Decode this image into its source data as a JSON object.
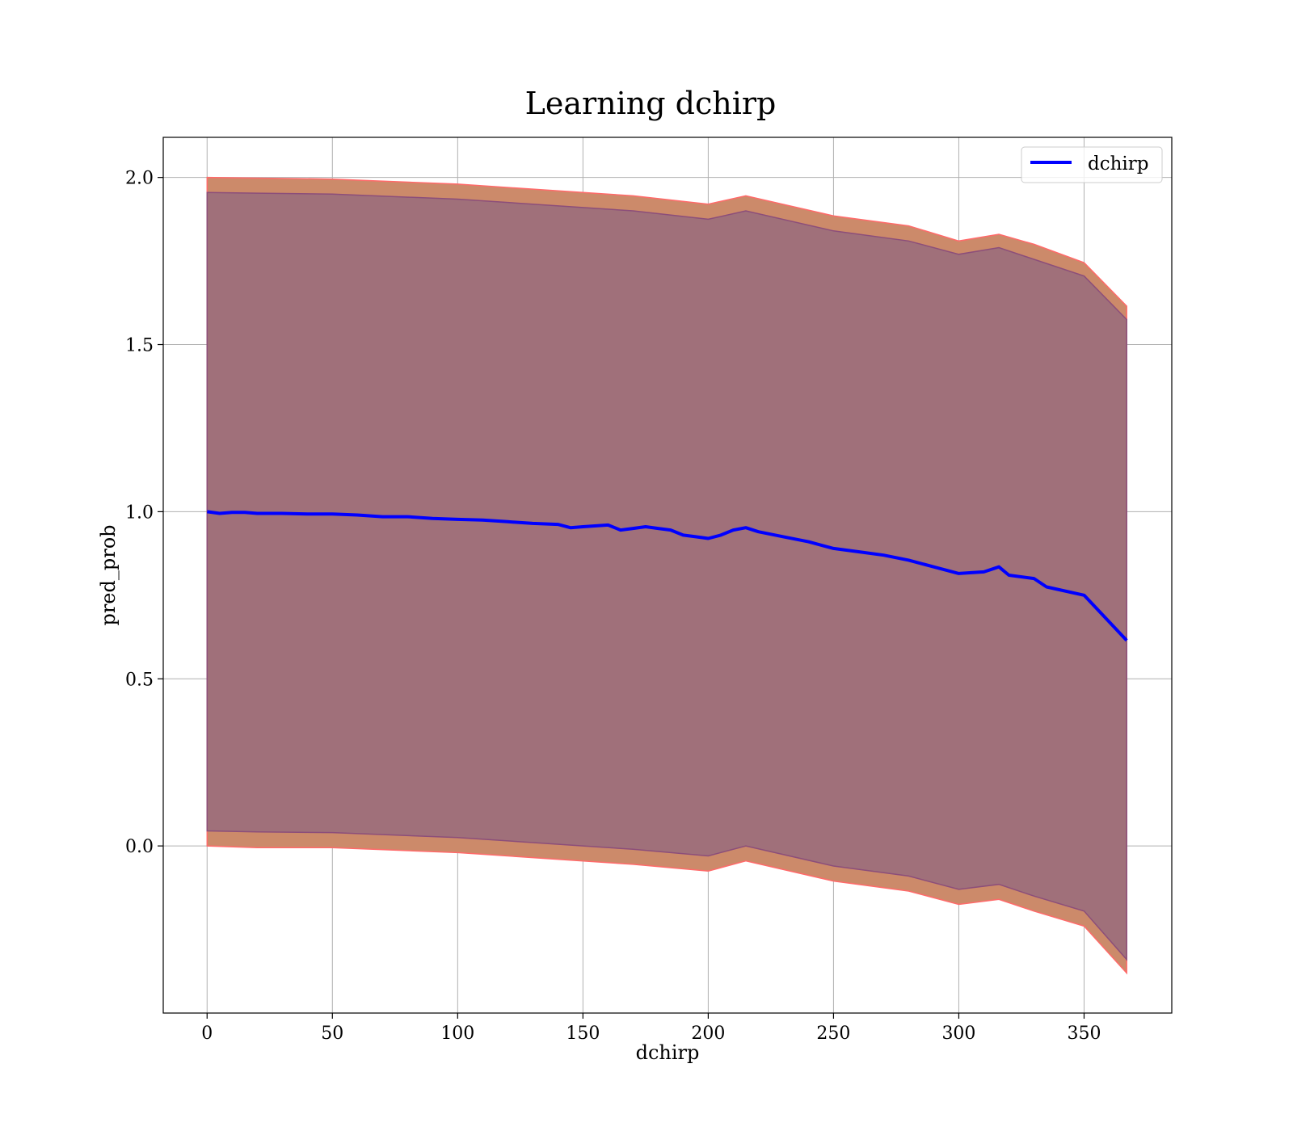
{
  "chart_data": {
    "type": "line",
    "title": "Learning dchirp",
    "xlabel": "dchirp",
    "ylabel": "pred_prob",
    "xlim": [
      -17.5,
      385
    ],
    "ylim": [
      -0.5,
      2.12
    ],
    "xticks": [
      0,
      50,
      100,
      150,
      200,
      250,
      300,
      350
    ],
    "yticks": [
      0.0,
      0.5,
      1.0,
      1.5,
      2.0
    ],
    "xtick_labels": [
      "0",
      "50",
      "100",
      "150",
      "200",
      "250",
      "300",
      "350"
    ],
    "ytick_labels": [
      "0.0",
      "0.5",
      "1.0",
      "1.5",
      "2.0"
    ],
    "grid": true,
    "legend_position": "top-right",
    "series": [
      {
        "name": "dchirp",
        "color": "#0000ff",
        "x": [
          0,
          5,
          10,
          15,
          20,
          30,
          40,
          50,
          60,
          70,
          80,
          90,
          100,
          110,
          120,
          130,
          140,
          145,
          150,
          160,
          165,
          170,
          175,
          180,
          185,
          190,
          195,
          200,
          205,
          210,
          215,
          220,
          230,
          240,
          250,
          260,
          270,
          280,
          290,
          300,
          310,
          316,
          320,
          330,
          335,
          350,
          367
        ],
        "y": [
          1.0,
          0.995,
          0.998,
          0.998,
          0.995,
          0.995,
          0.993,
          0.993,
          0.99,
          0.985,
          0.985,
          0.98,
          0.977,
          0.975,
          0.97,
          0.965,
          0.962,
          0.952,
          0.955,
          0.96,
          0.945,
          0.95,
          0.955,
          0.95,
          0.945,
          0.93,
          0.925,
          0.92,
          0.93,
          0.945,
          0.952,
          0.94,
          0.925,
          0.91,
          0.89,
          0.88,
          0.87,
          0.855,
          0.835,
          0.815,
          0.82,
          0.835,
          0.81,
          0.8,
          0.775,
          0.75,
          0.615
        ]
      }
    ],
    "bands": [
      {
        "name": "outer_band",
        "color": "#ff6a6a",
        "fill_color": "#cc8a6a",
        "x": [
          0,
          20,
          50,
          100,
          150,
          170,
          200,
          215,
          250,
          280,
          300,
          316,
          330,
          350,
          367
        ],
        "upper": [
          2.0,
          1.998,
          1.995,
          1.98,
          1.955,
          1.945,
          1.92,
          1.945,
          1.885,
          1.855,
          1.81,
          1.83,
          1.8,
          1.745,
          1.615
        ],
        "lower": [
          0.0,
          -0.005,
          -0.005,
          -0.02,
          -0.045,
          -0.055,
          -0.075,
          -0.045,
          -0.105,
          -0.135,
          -0.175,
          -0.16,
          -0.195,
          -0.24,
          -0.38
        ]
      },
      {
        "name": "inner_band",
        "color": "#8c4e7a",
        "fill_color": "#a0707a",
        "x": [
          0,
          20,
          50,
          100,
          150,
          170,
          200,
          215,
          250,
          280,
          300,
          316,
          330,
          350,
          367
        ],
        "upper": [
          1.955,
          1.953,
          1.95,
          1.935,
          1.91,
          1.9,
          1.875,
          1.9,
          1.84,
          1.81,
          1.77,
          1.79,
          1.755,
          1.705,
          1.575
        ],
        "lower": [
          0.045,
          0.042,
          0.04,
          0.025,
          0.0,
          -0.01,
          -0.03,
          0.0,
          -0.06,
          -0.09,
          -0.13,
          -0.115,
          -0.15,
          -0.195,
          -0.34
        ]
      }
    ]
  }
}
